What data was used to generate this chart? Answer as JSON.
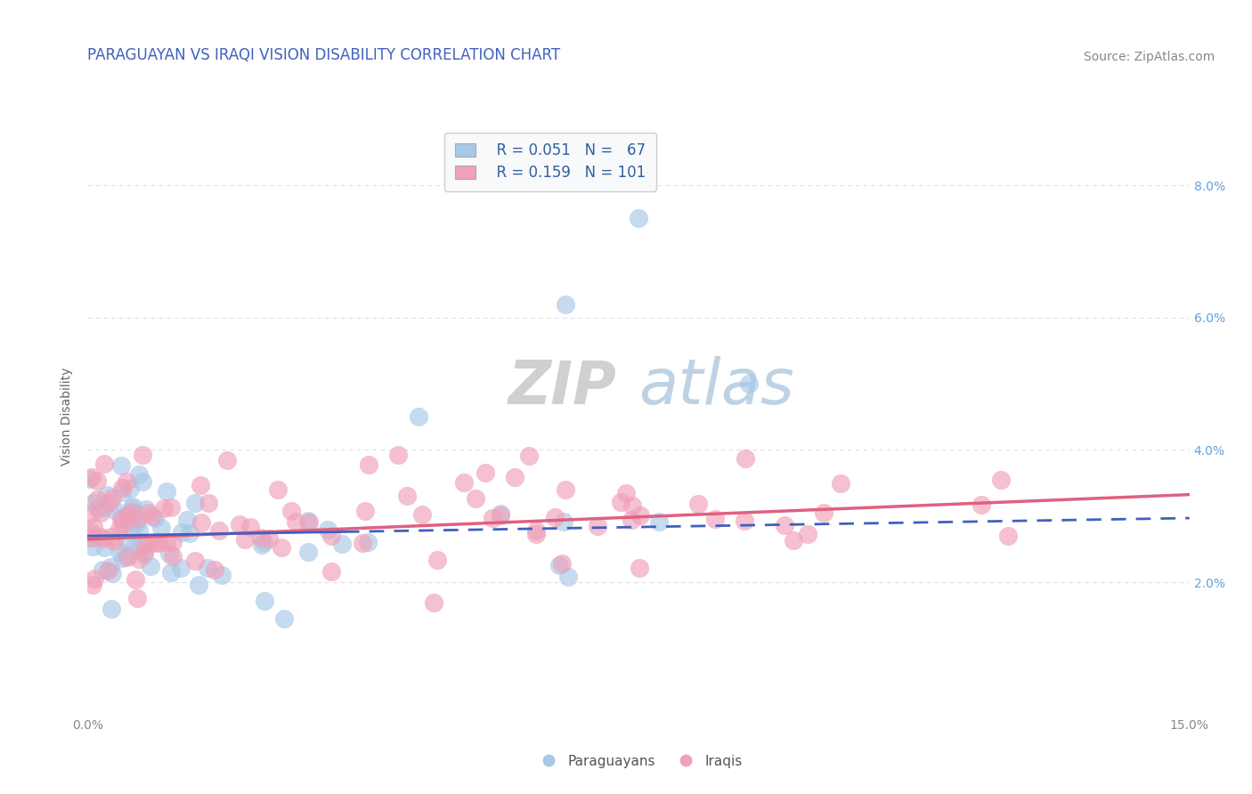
{
  "title": "PARAGUAYAN VS IRAQI VISION DISABILITY CORRELATION CHART",
  "source": "Source: ZipAtlas.com",
  "ylabel": "Vision Disability",
  "xlim": [
    0.0,
    15.0
  ],
  "ylim": [
    0.0,
    9.0
  ],
  "yticks": [
    2.0,
    4.0,
    6.0,
    8.0
  ],
  "ytick_labels": [
    "2.0%",
    "4.0%",
    "6.0%",
    "8.0%"
  ],
  "xticks": [
    0.0,
    15.0
  ],
  "xtick_labels": [
    "0.0%",
    "15.0%"
  ],
  "watermark_part1": "ZIP",
  "watermark_part2": "atlas",
  "blue_color": "#A8C8E8",
  "pink_color": "#F0A0B8",
  "blue_line_color": "#4060C0",
  "pink_line_color": "#E06080",
  "title_color": "#4060C0",
  "tick_color_y": "#60A0E0",
  "tick_color_x": "#888888",
  "source_color": "#888888",
  "grid_color": "#DDDDDD",
  "background_color": "#FFFFFF",
  "title_fontsize": 12,
  "axis_label_fontsize": 10,
  "tick_fontsize": 10,
  "legend_fontsize": 12,
  "source_fontsize": 10,
  "watermark_fontsize1": 48,
  "watermark_fontsize2": 52
}
